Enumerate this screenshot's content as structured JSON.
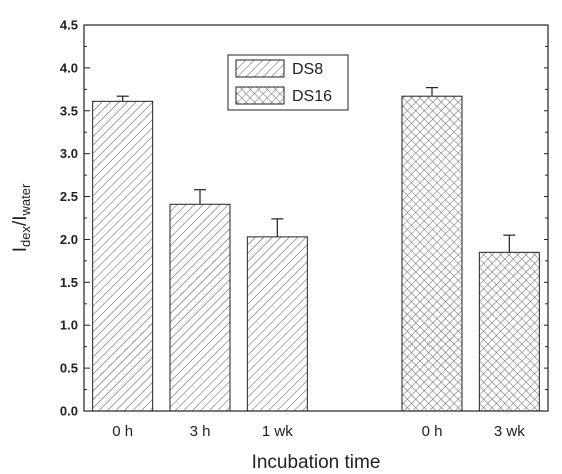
{
  "chart_data": {
    "type": "bar",
    "title": "",
    "xlabel": "Incubation time",
    "ylabel": {
      "main": "I",
      "sub1": "dex",
      "slash": "/I",
      "sub2": "water"
    },
    "ylim": [
      0,
      4.5
    ],
    "y_ticks": [
      "0.0",
      "0.5",
      "1.0",
      "1.5",
      "2.0",
      "2.5",
      "3.0",
      "3.5",
      "4.0",
      "4.5"
    ],
    "grid": false,
    "legend_position": "top-center",
    "series": [
      {
        "name": "DS8",
        "pattern": "diagonal-hatch",
        "color": "#555555",
        "categories": [
          "0 h",
          "3 h",
          "1 wk"
        ],
        "values": [
          3.61,
          2.41,
          2.03
        ],
        "errors": [
          0.06,
          0.17,
          0.21
        ]
      },
      {
        "name": "DS16",
        "pattern": "crosshatch",
        "color": "#555555",
        "categories": [
          "0 h",
          "3 wk"
        ],
        "values": [
          3.67,
          1.85
        ],
        "errors": [
          0.1,
          0.2
        ]
      }
    ]
  }
}
